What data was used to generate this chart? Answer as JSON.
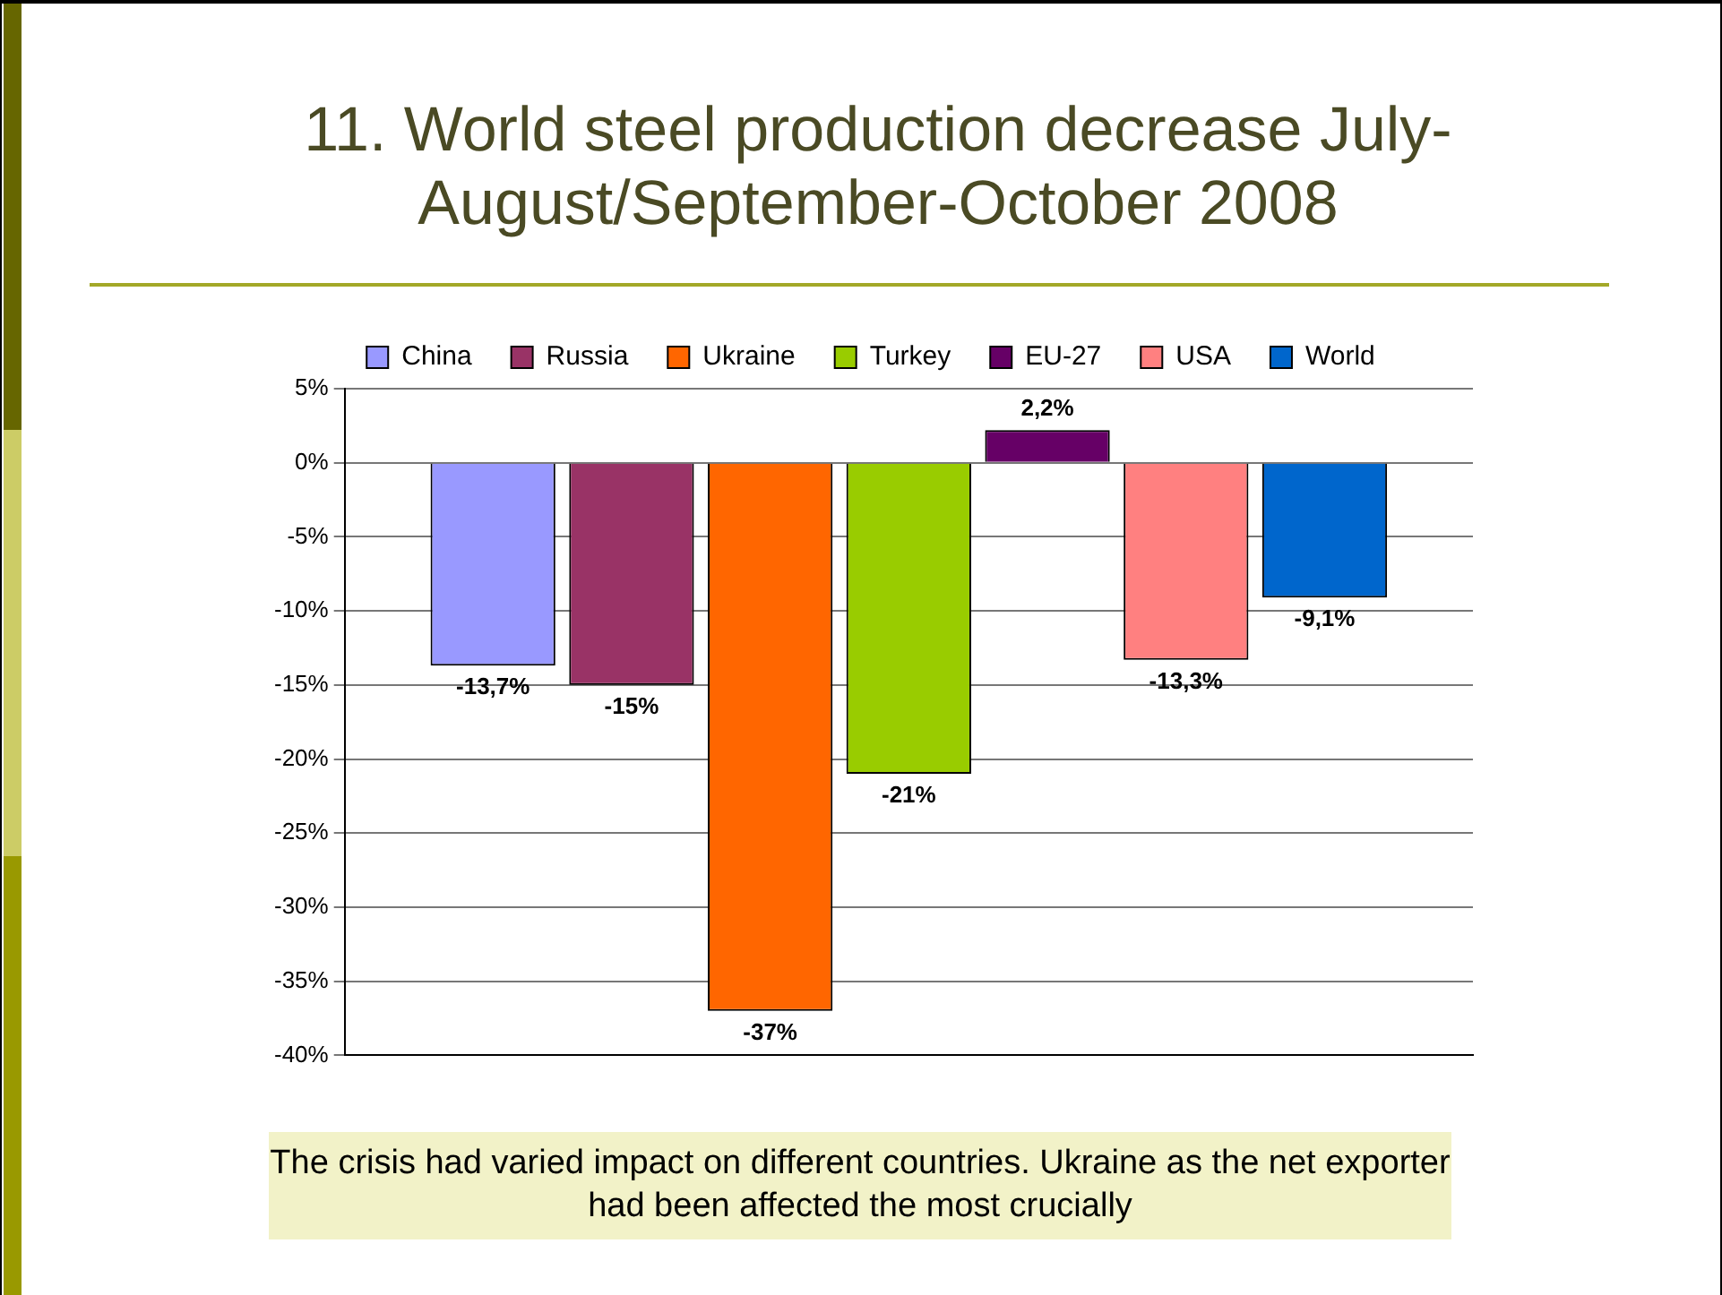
{
  "chart_data": {
    "type": "bar",
    "title": "11. World steel production decrease July-August/September-October 2008",
    "categories": [
      null
    ],
    "series": [
      {
        "name": "China",
        "color": "#9999ff",
        "values": [
          -13.7
        ],
        "value_labels": [
          "-13,7%"
        ]
      },
      {
        "name": "Russia",
        "color": "#993366",
        "values": [
          -15
        ],
        "value_labels": [
          "-15%"
        ]
      },
      {
        "name": "Ukraine",
        "color": "#ff6600",
        "values": [
          -37
        ],
        "value_labels": [
          "-37%"
        ]
      },
      {
        "name": "Turkey",
        "color": "#99cc00",
        "values": [
          -21
        ],
        "value_labels": [
          "-21%"
        ]
      },
      {
        "name": "EU-27",
        "color": "#660066",
        "values": [
          2.2
        ],
        "value_labels": [
          "2,2%"
        ]
      },
      {
        "name": "USA",
        "color": "#ff8080",
        "values": [
          -13.3
        ],
        "value_labels": [
          "-13,3%"
        ]
      },
      {
        "name": "World",
        "color": "#0066cc",
        "values": [
          -9.1
        ],
        "value_labels": [
          "-9,1%"
        ]
      }
    ],
    "ylim": [
      -40,
      5
    ],
    "yticks": [
      {
        "value": 5,
        "label": "5%"
      },
      {
        "value": 0,
        "label": "0%"
      },
      {
        "value": -5,
        "label": "-5%"
      },
      {
        "value": -10,
        "label": "-10%"
      },
      {
        "value": -15,
        "label": "-15%"
      },
      {
        "value": -20,
        "label": "-20%"
      },
      {
        "value": -25,
        "label": "-25%"
      },
      {
        "value": -30,
        "label": "-30%"
      },
      {
        "value": -35,
        "label": "-35%"
      },
      {
        "value": -40,
        "label": "-40%"
      }
    ],
    "grid": "y",
    "legend": "top",
    "tick_labels": "y",
    "annotations": [
      "The crisis had varied impact on different countries. Ukraine as the net exporter had been affected the most crucially"
    ]
  }
}
